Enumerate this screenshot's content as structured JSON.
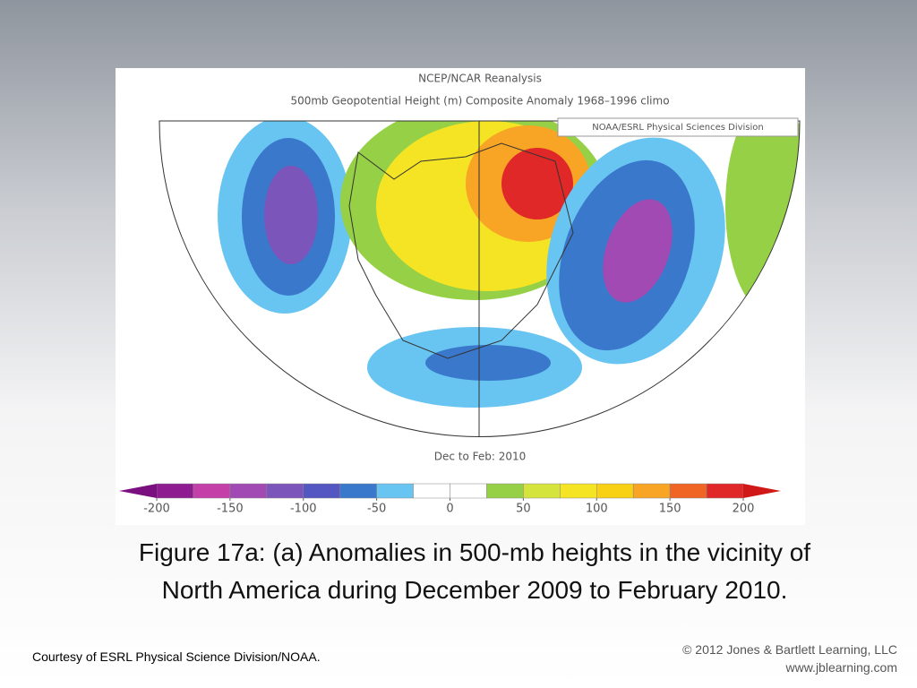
{
  "figure": {
    "title": "NCEP/NCAR Reanalysis",
    "subtitle": "500mb Geopotential Height (m) Composite Anomaly 1968–1996 climo",
    "source_label": "NOAA/ESRL Physical Sciences Division",
    "period": "Dec to Feb: 2010",
    "colorbar": {
      "ticks": [
        -200,
        -150,
        -100,
        -50,
        0,
        50,
        100,
        150,
        200
      ],
      "colors": [
        "#8e1c90",
        "#c43fa8",
        "#a24ab4",
        "#7c55ba",
        "#5457c2",
        "#3a78cc",
        "#68c4f0",
        "#ffffff",
        "#ffffff",
        "#96d046",
        "#d4e43c",
        "#f4e424",
        "#f8d014",
        "#f8a424",
        "#f06424",
        "#e02828"
      ],
      "end_colors": [
        "#7a1080",
        "#d01818"
      ]
    }
  },
  "caption": "Figure 17a: (a) Anomalies in 500-mb heights in the vicinity of North America during December 2009 to February 2010.",
  "credit": "Courtesy of ESRL Physical Science Division/NOAA.",
  "copyright": "© 2012 Jones & Bartlett Learning, LLC",
  "website": "www.jblearning.com"
}
